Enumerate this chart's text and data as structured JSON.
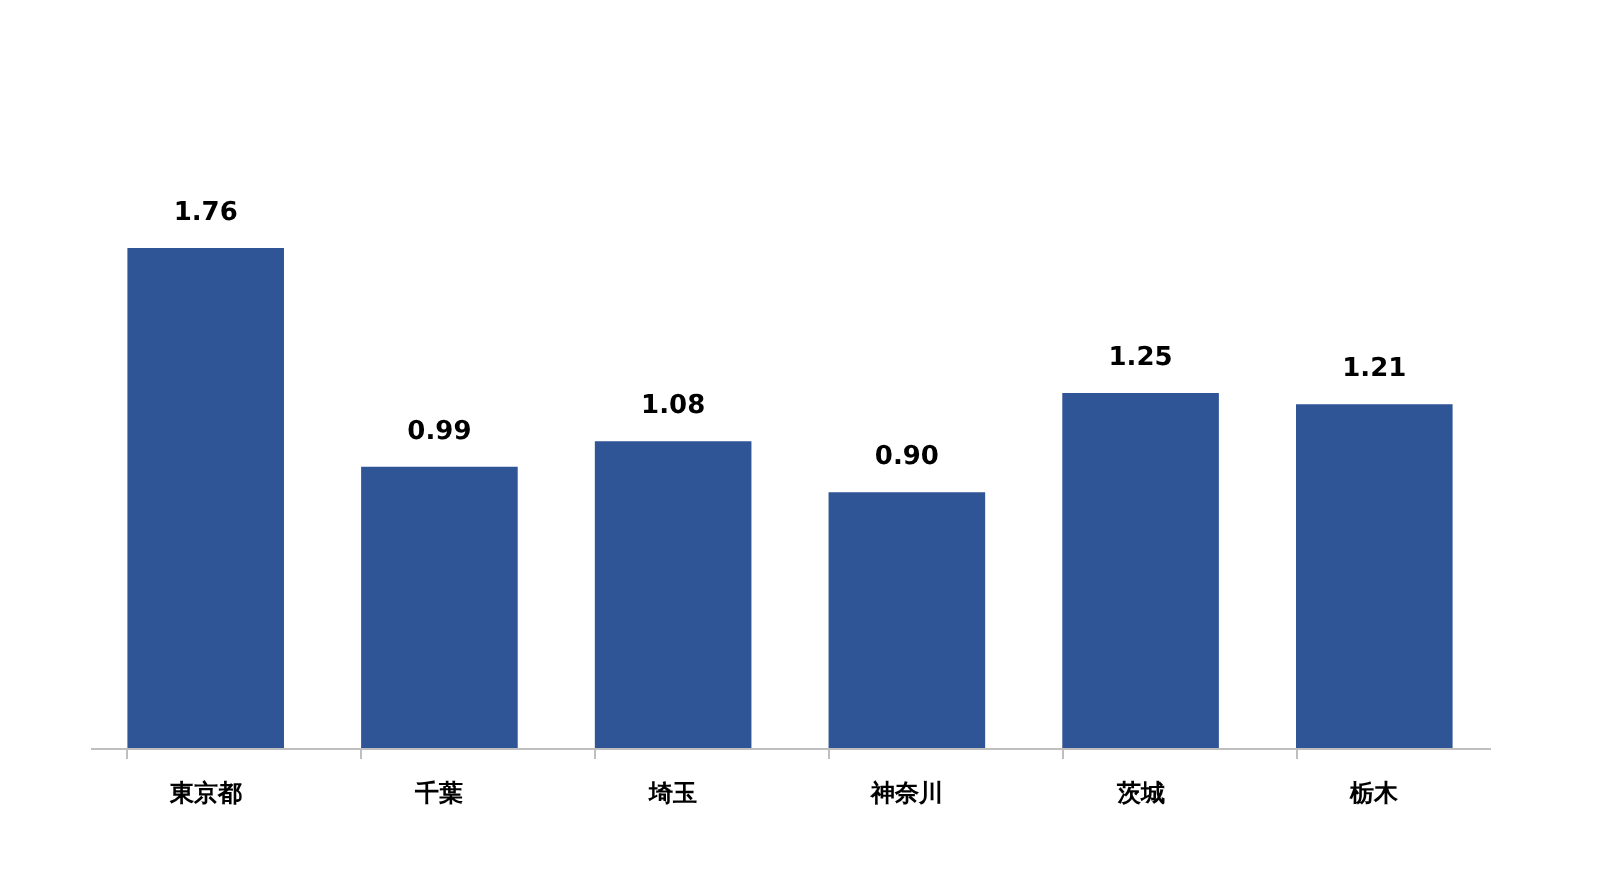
{
  "chart_data": {
    "type": "bar",
    "categories": [
      "東京都",
      "千葉",
      "埼玉",
      "神奈川",
      "茨城",
      "栃木"
    ],
    "values": [
      1.76,
      0.99,
      1.08,
      0.9,
      1.25,
      1.21
    ],
    "value_labels": [
      "1.76",
      "0.99",
      "1.08",
      "0.90",
      "1.25",
      "1.21"
    ],
    "color": "#2f5597",
    "tick_labels": "x"
  }
}
